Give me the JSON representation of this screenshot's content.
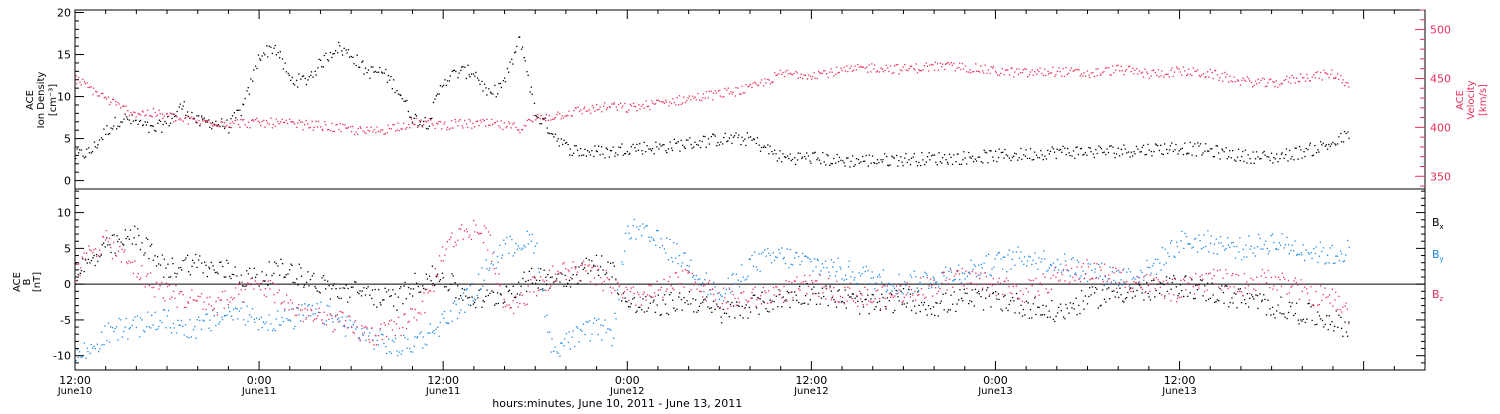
{
  "chart_data": [
    {
      "type": "scatter",
      "panel": "top",
      "ylabel_left": [
        "ACE",
        "Ion Density",
        "[cm⁻³]"
      ],
      "ylabel_right": [
        "ACE",
        "Velocity",
        "[km/s]"
      ],
      "ylim_left": [
        -1,
        20.3
      ],
      "ylim_right": [
        337,
        520
      ],
      "yticks_left": [
        "0",
        "5",
        "10",
        "15",
        "20"
      ],
      "yticks_right": [
        "350",
        "400",
        "450",
        "500"
      ],
      "grid": false,
      "colors": {
        "density": "#000000",
        "velocity": "#e8305a"
      },
      "series": [
        {
          "axis": "left",
          "x_hours": [
            0,
            1,
            2,
            3,
            4,
            5,
            6,
            7,
            8,
            9,
            10,
            11,
            12,
            13,
            14,
            15,
            16,
            17,
            18,
            19,
            20,
            21,
            22,
            23,
            24,
            25,
            26,
            27,
            28,
            29,
            30,
            31,
            32,
            33,
            34,
            35,
            36,
            38,
            40,
            42,
            44,
            46,
            48,
            50,
            52,
            54,
            56,
            58,
            60,
            62,
            64,
            66,
            68,
            70,
            72,
            74,
            76,
            78,
            80,
            82,
            83
          ],
          "values": [
            3,
            3.5,
            6,
            7.5,
            7,
            6,
            7,
            9,
            7,
            7,
            6.5,
            9,
            15,
            16,
            12,
            12,
            14,
            16,
            15,
            13,
            13,
            11,
            7.5,
            7,
            12,
            13,
            13,
            10,
            12,
            17,
            8,
            6,
            4,
            3.5,
            3.5,
            3.5,
            4,
            4,
            4.5,
            5,
            5,
            2.8,
            2.8,
            2.4,
            2.5,
            2.6,
            2.7,
            2.8,
            3,
            3.2,
            3.5,
            3.5,
            3.6,
            3.8,
            4,
            3.6,
            3,
            2.8,
            3.5,
            4.5,
            5.5
          ]
        },
        {
          "axis": "right",
          "x_hours": [
            0,
            1,
            2,
            3,
            4,
            5,
            6,
            7,
            8,
            9,
            10,
            11,
            12,
            13,
            14,
            15,
            16,
            17,
            18,
            19,
            20,
            21,
            22,
            23,
            24,
            25,
            26,
            27,
            28,
            29,
            30,
            31,
            32,
            33,
            34,
            35,
            36,
            38,
            40,
            42,
            44,
            46,
            48,
            50,
            52,
            54,
            56,
            58,
            60,
            62,
            64,
            66,
            68,
            70,
            72,
            74,
            76,
            78,
            80,
            82,
            83
          ],
          "values": [
            450,
            440,
            430,
            420,
            415,
            415,
            412,
            408,
            407,
            406,
            405,
            405,
            405,
            405,
            404,
            403,
            402,
            400,
            398,
            396,
            398,
            402,
            405,
            405,
            403,
            404,
            404,
            404,
            402,
            400,
            410,
            412,
            415,
            418,
            420,
            422,
            420,
            425,
            430,
            435,
            440,
            455,
            455,
            458,
            462,
            460,
            463,
            462,
            458,
            456,
            458,
            455,
            460,
            455,
            458,
            455,
            448,
            445,
            452,
            455,
            445
          ]
        }
      ]
    },
    {
      "type": "scatter",
      "panel": "bottom",
      "ylabel_left": [
        "ACE",
        "B",
        "[nT]"
      ],
      "ylim": [
        -12,
        13.3
      ],
      "yticks": [
        "-10",
        "-5",
        "0",
        "5",
        "10"
      ],
      "zero_line": true,
      "grid": false,
      "legend": [
        "Bx",
        "By",
        "Bz"
      ],
      "legend_position": "right",
      "colors": {
        "Bx": "#000000",
        "By": "#1e88e5",
        "Bz": "#e8305a"
      },
      "series": [
        {
          "name": "Bx",
          "x_hours": [
            0,
            1,
            2,
            3,
            4,
            5,
            6,
            7,
            8,
            9,
            10,
            11,
            12,
            13,
            14,
            15,
            16,
            17,
            18,
            19,
            20,
            21,
            22,
            23,
            24,
            25,
            26,
            27,
            28,
            29,
            30,
            31,
            32,
            33,
            34,
            35,
            36,
            38,
            40,
            42,
            44,
            46,
            48,
            50,
            52,
            54,
            56,
            58,
            60,
            62,
            64,
            66,
            68,
            70,
            72,
            74,
            76,
            78,
            80,
            82,
            83
          ],
          "values": [
            2,
            3,
            5,
            6,
            7,
            4,
            2,
            3,
            3,
            2,
            2,
            1,
            1,
            2,
            2,
            1,
            0,
            -1,
            -1,
            -1,
            -2,
            -2,
            0,
            1,
            1,
            -1,
            -2,
            -2,
            -1,
            0,
            1,
            1,
            1,
            2,
            3,
            2,
            -3,
            -3,
            -2,
            -4,
            -3,
            -2,
            -1,
            -2,
            -3,
            -2,
            -3,
            -2,
            -2,
            -3,
            -4,
            -2,
            -1,
            -1,
            0,
            -1,
            -2,
            -3,
            -4,
            -5,
            -6
          ]
        },
        {
          "name": "By",
          "x_hours": [
            0,
            1,
            2,
            3,
            4,
            5,
            6,
            7,
            8,
            9,
            10,
            11,
            12,
            13,
            14,
            15,
            16,
            17,
            18,
            19,
            20,
            21,
            22,
            23,
            24,
            25,
            26,
            27,
            28,
            29,
            30,
            31,
            32,
            33,
            34,
            35,
            36,
            38,
            40,
            42,
            44,
            46,
            48,
            50,
            52,
            54,
            56,
            58,
            60,
            62,
            64,
            66,
            68,
            70,
            72,
            74,
            76,
            78,
            80,
            82,
            83
          ],
          "values": [
            -10,
            -9,
            -7,
            -6,
            -6,
            -5,
            -5,
            -6,
            -6,
            -5,
            -4,
            -4,
            -5,
            -5,
            -5,
            -4,
            -4,
            -5,
            -6,
            -7,
            -8,
            -9,
            -8,
            -7,
            -5,
            -3,
            -1,
            3,
            5,
            6,
            6,
            -9,
            -8,
            -7,
            -6,
            -7,
            8,
            6,
            3,
            -2,
            3,
            4,
            3,
            2,
            1,
            0,
            1,
            2,
            3,
            4,
            3,
            2,
            1,
            2,
            6,
            6,
            5,
            6,
            5,
            4,
            5
          ]
        },
        {
          "name": "Bz",
          "x_hours": [
            0,
            1,
            2,
            3,
            4,
            5,
            6,
            7,
            8,
            9,
            10,
            11,
            12,
            13,
            14,
            15,
            16,
            17,
            18,
            19,
            20,
            21,
            22,
            23,
            24,
            25,
            26,
            27,
            28,
            29,
            30,
            31,
            32,
            33,
            34,
            35,
            36,
            38,
            40,
            42,
            44,
            46,
            48,
            50,
            52,
            54,
            56,
            58,
            60,
            62,
            64,
            66,
            68,
            70,
            72,
            74,
            76,
            78,
            80,
            82,
            83
          ],
          "values": [
            1,
            5,
            6,
            4,
            2,
            0,
            -1,
            -2,
            -2,
            -3,
            -2,
            -1,
            0,
            -1,
            -3,
            -4,
            -5,
            -5,
            -6,
            -7,
            -7,
            -6,
            -4,
            -2,
            5,
            7,
            8,
            6,
            -3,
            -2,
            0,
            1,
            2,
            2,
            1,
            0,
            -2,
            -1,
            1,
            -2,
            -2,
            -1,
            0,
            -1,
            -2,
            -1,
            0,
            1,
            0,
            -1,
            1,
            2,
            1,
            0,
            -1,
            1,
            0,
            1,
            -1,
            -2,
            -4
          ]
        }
      ]
    }
  ],
  "x_axis": {
    "xlim_hours": [
      0,
      88
    ],
    "major_ticks_hours": [
      0,
      12,
      24,
      36,
      48,
      60,
      72,
      84
    ],
    "tick_time_labels": [
      "12:00",
      "0:00",
      "12:00",
      "0:00",
      "12:00",
      "0:00",
      "12:00"
    ],
    "tick_date_labels": [
      "June10",
      "June11",
      "June11",
      "June12",
      "June12",
      "June13",
      "June13"
    ],
    "label": "hours:minutes, June 10, 2011 - June 13, 2011"
  },
  "legend_labels": {
    "Bx": {
      "main": "B",
      "sub": "x"
    },
    "By": {
      "main": "B",
      "sub": "y"
    },
    "Bz": {
      "main": "B",
      "sub": "z"
    }
  }
}
